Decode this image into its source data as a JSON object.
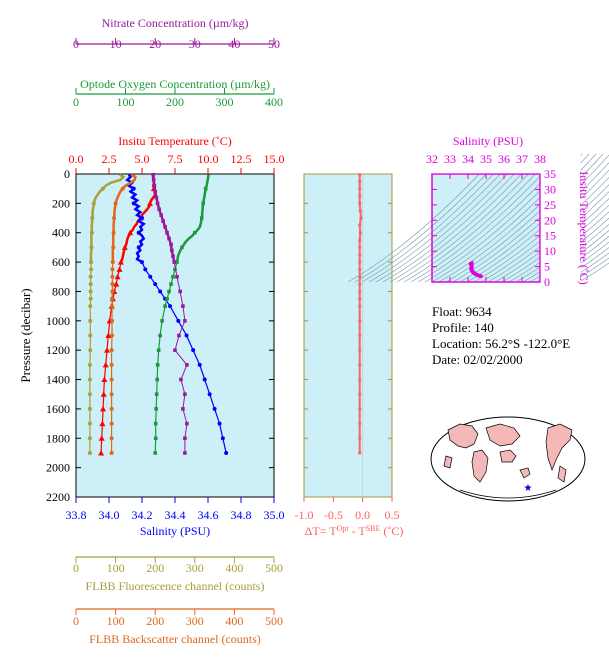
{
  "float_info": {
    "float": "Float:  9634",
    "profile": "Profile:  140",
    "location": "Location:  56.2°S  -122.0°E",
    "date": "Date:  02/02/2000"
  },
  "colors": {
    "panel_bg": "#cdeff8",
    "nitrate": "#9a1a9a",
    "oxygen": "#1a9a3a",
    "temperature": "#ff0000",
    "salinity": "#0000ff",
    "fluorescence": "#a8a038",
    "backscatter": "#e06818",
    "delta_t": "#ff6060",
    "ts": "#e000e0",
    "map_land": "#f4b8b8"
  },
  "chart_data": [
    {
      "id": "profile",
      "type": "line",
      "ylabel": "Pressure (decibar)",
      "ylim": [
        0,
        2200
      ],
      "y_ticks": [
        "0",
        "200",
        "400",
        "600",
        "800",
        "1000",
        "1200",
        "1400",
        "1600",
        "1800",
        "2000",
        "2200"
      ],
      "axes": [
        {
          "key": "nitrate",
          "label": "Nitrate Concentration (µm/kg)",
          "range": [
            0,
            50
          ],
          "ticks": [
            "0",
            "10",
            "20",
            "30",
            "40",
            "50"
          ]
        },
        {
          "key": "oxygen",
          "label": "Optode Oxygen Concentration (µm/kg)",
          "range": [
            0,
            400
          ],
          "ticks": [
            "0",
            "100",
            "200",
            "300",
            "400"
          ]
        },
        {
          "key": "temperature",
          "label": "Insitu Temperature (˚C)",
          "range": [
            0,
            15
          ],
          "ticks": [
            "0.0",
            "2.5",
            "5.0",
            "7.5",
            "10.0",
            "12.5",
            "15.0"
          ]
        },
        {
          "key": "salinity",
          "label": "Salinity (PSU)",
          "range": [
            33.8,
            35.0
          ],
          "ticks": [
            "33.8",
            "34.0",
            "34.2",
            "34.4",
            "34.6",
            "34.8",
            "35.0"
          ]
        },
        {
          "key": "fluorescence",
          "label": "FLBB Fluorescence channel (counts)",
          "range": [
            0,
            500
          ],
          "ticks": [
            "0",
            "100",
            "200",
            "300",
            "400",
            "500"
          ]
        },
        {
          "key": "backscatter",
          "label": "FLBB Backscatter channel (counts)",
          "range": [
            0,
            500
          ],
          "ticks": [
            "0",
            "100",
            "200",
            "300",
            "400",
            "500"
          ]
        }
      ],
      "series": [
        {
          "key": "temperature",
          "p": [
            5,
            20,
            40,
            60,
            80,
            100,
            120,
            140,
            160,
            180,
            200,
            220,
            240,
            260,
            280,
            300,
            320,
            340,
            360,
            380,
            400,
            420,
            440,
            460,
            480,
            500,
            520,
            540,
            560,
            580,
            600,
            650,
            700,
            750,
            800,
            850,
            900,
            1000,
            1100,
            1200,
            1300,
            1400,
            1500,
            1600,
            1700,
            1800,
            1900
          ],
          "v": [
            5.8,
            5.85,
            5.9,
            5.9,
            5.85,
            5.9,
            5.95,
            6.0,
            5.85,
            5.7,
            5.6,
            5.55,
            5.4,
            5.2,
            5.0,
            4.9,
            4.7,
            4.6,
            4.4,
            4.3,
            4.1,
            4.0,
            3.9,
            3.85,
            3.8,
            3.7,
            3.65,
            3.6,
            3.55,
            3.5,
            3.4,
            3.3,
            3.15,
            3.05,
            2.9,
            2.8,
            2.7,
            2.55,
            2.45,
            2.35,
            2.25,
            2.15,
            2.1,
            2.05,
            2.0,
            1.95,
            1.9
          ]
        },
        {
          "key": "salinity",
          "p": [
            5,
            20,
            40,
            60,
            80,
            100,
            120,
            140,
            160,
            180,
            200,
            220,
            240,
            260,
            280,
            300,
            320,
            340,
            360,
            380,
            400,
            420,
            440,
            460,
            480,
            500,
            520,
            540,
            560,
            580,
            600,
            650,
            700,
            750,
            800,
            850,
            900,
            1000,
            1100,
            1200,
            1300,
            1400,
            1500,
            1600,
            1700,
            1800,
            1900
          ],
          "v": [
            34.12,
            34.13,
            34.11,
            34.14,
            34.12,
            34.15,
            34.13,
            34.16,
            34.14,
            34.17,
            34.15,
            34.18,
            34.16,
            34.19,
            34.17,
            34.2,
            34.18,
            34.21,
            34.19,
            34.2,
            34.18,
            34.2,
            34.21,
            34.19,
            34.2,
            34.18,
            34.19,
            34.17,
            34.18,
            34.17,
            34.2,
            34.22,
            34.25,
            34.28,
            34.31,
            34.34,
            34.37,
            34.42,
            34.47,
            34.51,
            34.55,
            34.58,
            34.61,
            34.64,
            34.67,
            34.69,
            34.71
          ]
        },
        {
          "key": "oxygen",
          "p": [
            5,
            20,
            40,
            60,
            80,
            100,
            120,
            140,
            160,
            180,
            200,
            220,
            240,
            260,
            280,
            300,
            320,
            340,
            360,
            380,
            400,
            420,
            440,
            460,
            480,
            500,
            520,
            540,
            560,
            580,
            600,
            650,
            700,
            750,
            800,
            850,
            900,
            1000,
            1100,
            1200,
            1300,
            1400,
            1500,
            1600,
            1700,
            1800,
            1900
          ],
          "v": [
            268,
            267,
            266,
            265,
            264,
            262,
            261,
            260,
            259,
            258,
            257,
            256,
            256,
            255,
            255,
            254,
            253,
            252,
            250,
            246,
            240,
            235,
            228,
            222,
            218,
            214,
            211,
            208,
            206,
            205,
            204,
            200,
            196,
            192,
            188,
            184,
            180,
            174,
            170,
            167,
            165,
            164,
            163,
            162,
            161,
            161,
            160
          ]
        },
        {
          "key": "nitrate",
          "p": [
            5,
            40,
            80,
            120,
            160,
            200,
            240,
            280,
            320,
            360,
            400,
            440,
            480,
            520,
            560,
            600,
            700,
            800,
            900,
            1000,
            1100,
            1200,
            1300,
            1400,
            1500,
            1600,
            1700,
            1800,
            1900
          ],
          "v": [
            19.5,
            19.6,
            19.8,
            20.0,
            20.3,
            20.6,
            21.0,
            21.5,
            22.0,
            22.5,
            23.0,
            23.5,
            24.0,
            24.2,
            24.5,
            24.8,
            25.5,
            26.3,
            27.0,
            27.5,
            26.0,
            25.0,
            28.0,
            26.5,
            27.5,
            27.0,
            28.0,
            27.5,
            27.5
          ]
        },
        {
          "key": "fluorescence",
          "p": [
            5,
            20,
            40,
            60,
            80,
            100,
            120,
            140,
            160,
            180,
            200,
            220,
            240,
            260,
            280,
            300,
            320,
            340,
            360,
            380,
            400,
            420,
            440,
            460,
            480,
            500,
            520,
            540,
            560,
            580,
            600,
            650,
            700,
            750,
            800,
            850,
            900,
            1000,
            1100,
            1200,
            1300,
            1400,
            1500,
            1600,
            1700,
            1800,
            1900
          ],
          "v": [
            110,
            120,
            112,
            88,
            75,
            68,
            60,
            55,
            50,
            47,
            45,
            44,
            43,
            42,
            42,
            41,
            41,
            40,
            40,
            40,
            40,
            39,
            39,
            39,
            39,
            39,
            39,
            38,
            38,
            38,
            38,
            38,
            37,
            37,
            37,
            37,
            36,
            36,
            36,
            36,
            35,
            35,
            35,
            35,
            35,
            35,
            35
          ]
        },
        {
          "key": "backscatter",
          "p": [
            5,
            20,
            40,
            60,
            80,
            100,
            120,
            140,
            160,
            180,
            200,
            220,
            240,
            260,
            280,
            300,
            320,
            340,
            360,
            380,
            400,
            420,
            440,
            460,
            480,
            500,
            520,
            540,
            560,
            580,
            600,
            650,
            700,
            750,
            800,
            850,
            900,
            1000,
            1100,
            1200,
            1300,
            1400,
            1500,
            1600,
            1700,
            1800,
            1900
          ],
          "v": [
            140,
            150,
            148,
            138,
            125,
            118,
            112,
            108,
            105,
            102,
            100,
            99,
            98,
            97,
            97,
            96,
            96,
            95,
            95,
            95,
            95,
            94,
            94,
            94,
            94,
            94,
            93,
            93,
            93,
            93,
            93,
            92,
            92,
            92,
            92,
            91,
            91,
            91,
            91,
            90,
            90,
            90,
            90,
            90,
            90,
            90,
            90
          ]
        }
      ]
    },
    {
      "id": "delta_t",
      "type": "line",
      "xlabel": "ΔT= T",
      "xlabel_sup1": "Opt",
      "xlabel_mid": " - T",
      "xlabel_sup2": "SBE",
      "xlabel_unit": " (˚C)",
      "xlim": [
        -1.0,
        0.5
      ],
      "x_ticks": [
        "-1.0",
        "-0.5",
        "0.0",
        "0.5"
      ],
      "ylim": [
        0,
        2200
      ],
      "p": [
        5,
        50,
        100,
        150,
        200,
        250,
        300,
        350,
        400,
        450,
        500,
        550,
        600,
        650,
        700,
        750,
        800,
        850,
        900,
        1000,
        1100,
        1200,
        1300,
        1400,
        1500,
        1600,
        1700,
        1800,
        1900
      ],
      "v": [
        -0.05,
        -0.05,
        -0.05,
        -0.05,
        -0.05,
        -0.04,
        -0.03,
        -0.05,
        -0.04,
        -0.05,
        -0.05,
        -0.05,
        -0.05,
        -0.05,
        -0.05,
        -0.05,
        -0.05,
        -0.05,
        -0.05,
        -0.05,
        -0.05,
        -0.05,
        -0.05,
        -0.05,
        -0.05,
        -0.05,
        -0.05,
        -0.05,
        -0.05
      ]
    },
    {
      "id": "ts",
      "type": "scatter",
      "title": "Salinity (PSU)",
      "ylabel": "Insitu Temperature (˚C)",
      "xlim": [
        32,
        38
      ],
      "ylim": [
        0,
        35
      ],
      "x_ticks": [
        "32",
        "33",
        "34",
        "35",
        "36",
        "37",
        "38"
      ],
      "y_ticks": [
        "0",
        "5",
        "10",
        "15",
        "20",
        "25",
        "30",
        "35"
      ],
      "salinity": [
        34.15,
        34.17,
        34.2,
        34.19,
        34.21,
        34.18,
        34.2,
        34.22,
        34.25,
        34.3,
        34.37,
        34.45,
        34.55,
        34.65,
        34.71
      ],
      "temperature": [
        5.8,
        5.9,
        6.0,
        5.6,
        5.0,
        4.4,
        4.0,
        3.7,
        3.4,
        3.05,
        2.8,
        2.45,
        2.2,
        2.0,
        1.9
      ]
    }
  ]
}
